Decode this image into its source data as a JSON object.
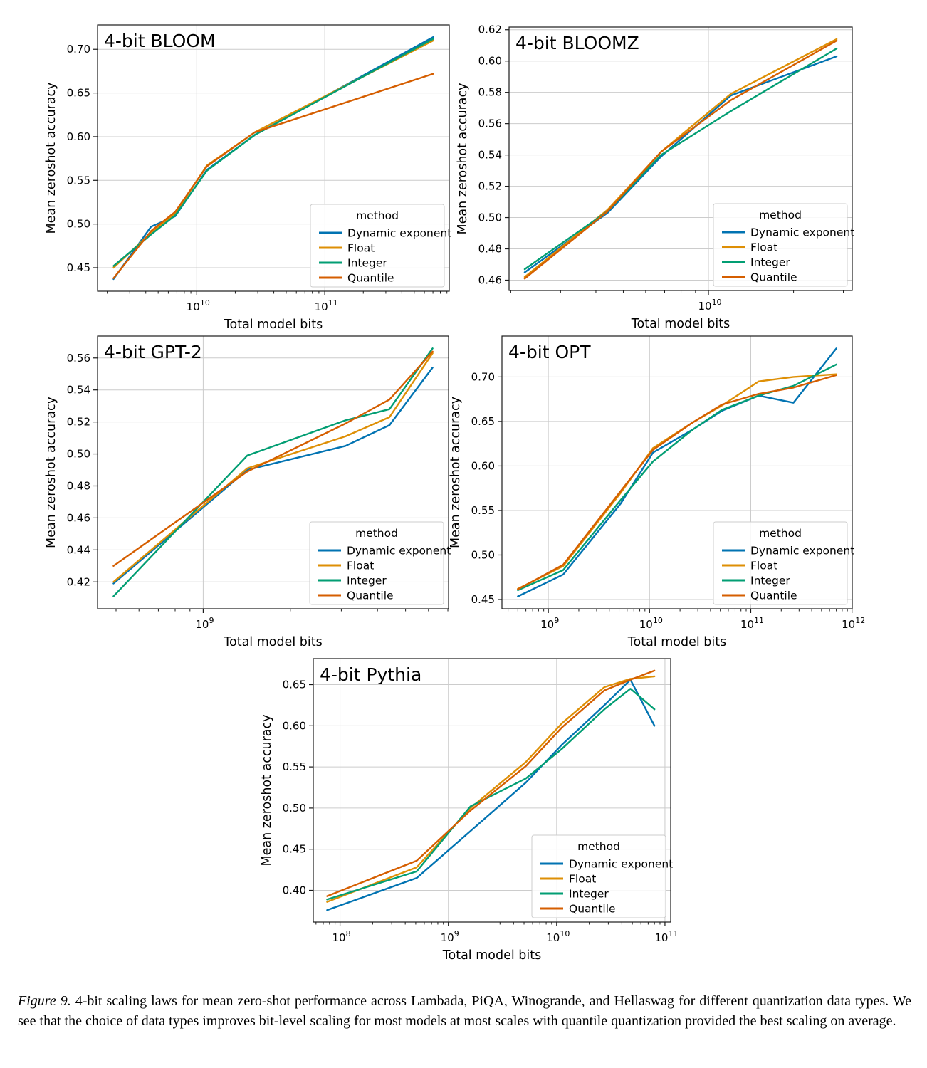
{
  "caption": {
    "label": "Figure 9.",
    "text": "4-bit scaling laws for mean zero-shot performance across Lambada, PiQA, Winogrande, and Hellaswag for different quantization data types. We see that the choice of data types improves bit-level scaling for most models at most scales with quantile quantization provided the best scaling on average."
  },
  "chart_data": {
    "type": "line",
    "xscale": "log",
    "grid": true,
    "legend_position": "lower right",
    "legend_title": "method",
    "grid_color": "#cccccc",
    "axis_color": "#1a1a1a",
    "methods": [
      {
        "label": "Dynamic exponent",
        "color": "#0173b2"
      },
      {
        "label": "Float",
        "color": "#de8f05"
      },
      {
        "label": "Integer",
        "color": "#029e73"
      },
      {
        "label": "Quantile",
        "color": "#d55e00"
      }
    ],
    "charts": [
      {
        "id": "bloom",
        "title": "4-bit BLOOM",
        "xlabel": "Total model bits",
        "ylabel": "Mean zeroshot accuracy",
        "xlim_log10": [
          9.2253,
          11.9725
        ],
        "ylim": [
          0.4231,
          0.7279
        ],
        "yticks": [
          0.45,
          0.5,
          0.55,
          0.6,
          0.65,
          0.7
        ],
        "x": [
          2240000000.0,
          4400000000.0,
          6800000000.0,
          12000000000.0,
          28400000000.0,
          704000000000.0
        ],
        "series": [
          [
            0.437,
            0.497,
            0.509,
            0.562,
            0.602,
            0.714
          ],
          [
            0.45,
            0.49,
            0.512,
            0.567,
            0.605,
            0.71
          ],
          [
            0.452,
            0.488,
            0.51,
            0.561,
            0.602,
            0.712
          ],
          [
            0.438,
            0.492,
            0.514,
            0.566,
            0.605,
            0.672
          ]
        ]
      },
      {
        "id": "bloomz",
        "title": "4-bit BLOOMZ",
        "xlabel": "Total model bits",
        "ylabel": "Mean zeroshot accuracy",
        "xlim_log10": [
          9.295,
          10.5085
        ],
        "ylim": [
          0.4534,
          0.6217
        ],
        "yticks": [
          0.46,
          0.48,
          0.5,
          0.52,
          0.54,
          0.56,
          0.58,
          0.6,
          0.62
        ],
        "x": [
          2240000000.0,
          4400000000.0,
          6800000000.0,
          12000000000.0,
          28400000000.0
        ],
        "series": [
          [
            0.465,
            0.503,
            0.539,
            0.578,
            0.603
          ],
          [
            0.462,
            0.505,
            0.542,
            0.579,
            0.614
          ],
          [
            0.467,
            0.504,
            0.54,
            0.568,
            0.608
          ],
          [
            0.461,
            0.504,
            0.542,
            0.575,
            0.613
          ]
        ]
      },
      {
        "id": "gpt2",
        "title": "4-bit GPT-2",
        "xlabel": "Total model bits",
        "ylabel": "Mean zeroshot accuracy",
        "xlim_log10": [
          8.635,
          9.8475
        ],
        "ylim": [
          0.4032,
          0.5737
        ],
        "yticks": [
          0.42,
          0.44,
          0.46,
          0.48,
          0.5,
          0.52,
          0.54,
          0.56
        ],
        "x": [
          490000000.0,
          1420000000.0,
          3100000000.0,
          4400000000.0,
          6200000000.0
        ],
        "series": [
          [
            0.419,
            0.49,
            0.505,
            0.518,
            0.554
          ],
          [
            0.42,
            0.491,
            0.511,
            0.523,
            0.563
          ],
          [
            0.411,
            0.499,
            0.521,
            0.528,
            0.566
          ],
          [
            0.43,
            0.489,
            0.519,
            0.534,
            0.564
          ]
        ]
      },
      {
        "id": "opt",
        "title": "4-bit OPT",
        "xlabel": "Total model bits",
        "ylabel": "Mean zeroshot accuracy",
        "xlim_log10": [
          8.5417,
          12.0024
        ],
        "ylim": [
          0.4396,
          0.7459
        ],
        "yticks": [
          0.45,
          0.5,
          0.55,
          0.6,
          0.65,
          0.7
        ],
        "x": [
          500000000.0,
          1400000000.0,
          5200000000.0,
          10800000000.0,
          26800000000.0,
          52000000000.0,
          120000000000.0,
          264000000000.0,
          700000000000.0
        ],
        "series": [
          [
            0.4535,
            0.478,
            0.558,
            0.615,
            0.641,
            0.662,
            0.679,
            0.671,
            0.732
          ],
          [
            0.462,
            0.4875,
            0.57,
            0.62,
            0.649,
            0.668,
            0.695,
            0.7,
            0.703
          ],
          [
            0.4605,
            0.483,
            0.562,
            0.605,
            0.641,
            0.663,
            0.679,
            0.69,
            0.714
          ],
          [
            0.4615,
            0.489,
            0.572,
            0.618,
            0.649,
            0.669,
            0.681,
            0.688,
            0.702
          ]
        ]
      },
      {
        "id": "pythia",
        "title": "4-bit Pythia",
        "xlabel": "Total model bits",
        "ylabel": "Mean zeroshot accuracy",
        "xlim_log10": [
          7.753,
          11.053
        ],
        "ylim": [
          0.3615,
          0.6816
        ],
        "yticks": [
          0.4,
          0.45,
          0.5,
          0.55,
          0.6,
          0.65
        ],
        "x": [
          76000000.0,
          510000000.0,
          1600000000.0,
          5200000000.0,
          11200000000.0,
          27600000000.0,
          48000000000.0,
          80000000000.0
        ],
        "series": [
          [
            0.376,
            0.415,
            0.472,
            0.531,
            0.577,
            0.625,
            0.656,
            0.6
          ],
          [
            0.386,
            0.428,
            0.5,
            0.556,
            0.603,
            0.647,
            0.657,
            0.66
          ],
          [
            0.389,
            0.423,
            0.502,
            0.536,
            0.572,
            0.62,
            0.645,
            0.62
          ],
          [
            0.393,
            0.436,
            0.497,
            0.551,
            0.598,
            0.643,
            0.656,
            0.667
          ]
        ]
      }
    ]
  }
}
